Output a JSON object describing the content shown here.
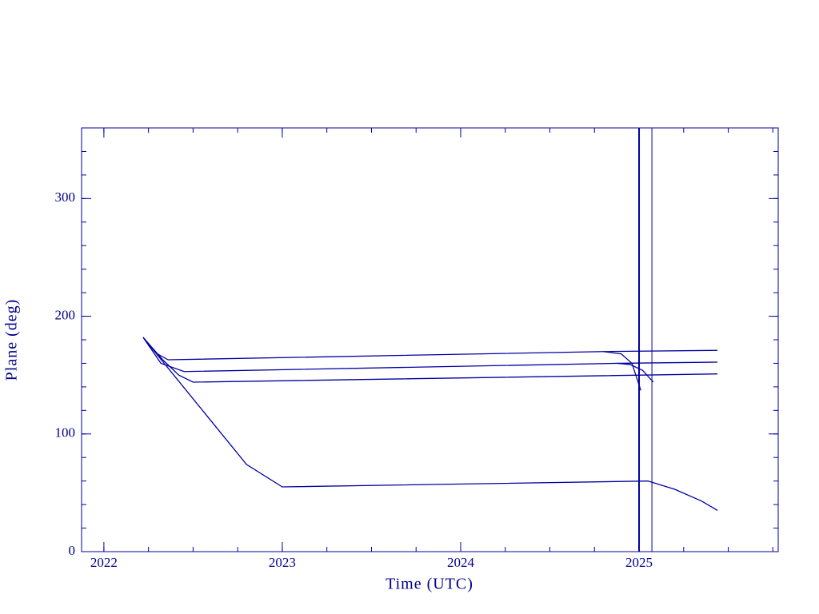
{
  "chart_data": {
    "type": "line",
    "x_label": "Time (UTC)",
    "y_label": "Plane (deg)",
    "xlim": [
      2021.875,
      2025.78
    ],
    "ylim": [
      0,
      360
    ],
    "xticks": [
      2022,
      2023,
      2024,
      2025
    ],
    "yticks": [
      0,
      100,
      200,
      300
    ],
    "minor_ticks": {
      "x": 0.25,
      "y": 20
    },
    "color": "#0000a0",
    "series": [
      {
        "x": [
          2022.22,
          2022.3,
          2022.36,
          2024.8,
          2025.44
        ],
        "values": [
          182,
          168,
          163,
          170,
          171
        ]
      },
      {
        "x": [
          2024.8,
          2024.9,
          2024.96,
          2025.01
        ],
        "values": [
          170,
          168,
          160,
          137
        ]
      },
      {
        "x": [
          2022.22,
          2022.32,
          2022.45,
          2024.88,
          2025.44
        ],
        "values": [
          182,
          160,
          153,
          160,
          161
        ]
      },
      {
        "x": [
          2024.88,
          2024.95,
          2025.02,
          2025.08
        ],
        "values": [
          160,
          159,
          154,
          144
        ]
      },
      {
        "x": [
          2022.22,
          2022.33,
          2022.42,
          2022.5,
          2025.44
        ],
        "values": [
          182,
          163,
          150,
          144,
          151
        ]
      },
      {
        "x": [
          2022.22,
          2022.8,
          2023.0,
          2025.05,
          2025.2,
          2025.35,
          2025.44
        ],
        "values": [
          182,
          74,
          55,
          60,
          53,
          43,
          35
        ]
      }
    ],
    "vlines": [
      2025.0,
      2025.072
    ],
    "vline_widths": [
      2,
      1
    ]
  }
}
